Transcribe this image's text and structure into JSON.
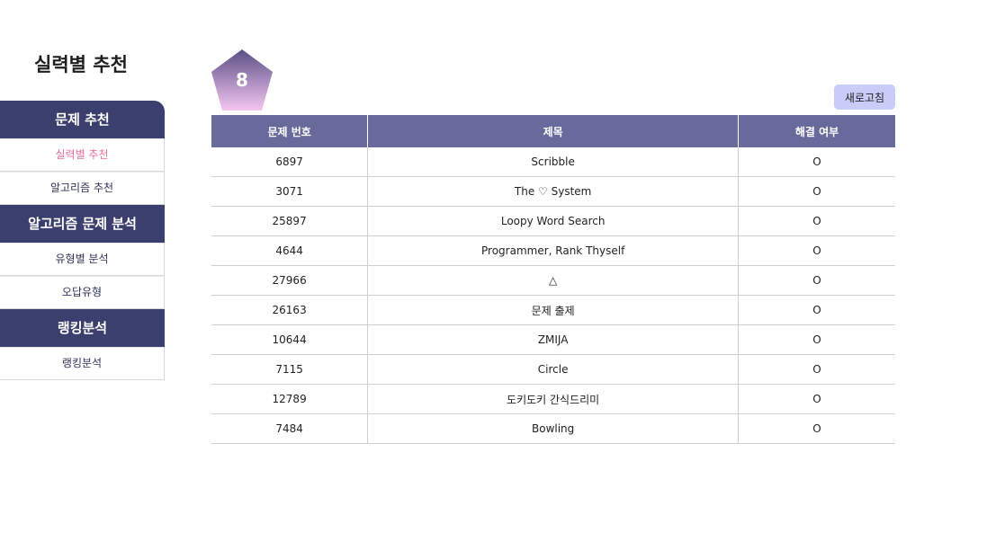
{
  "page": {
    "title": "실력별 추천"
  },
  "sidebar": {
    "sections": [
      {
        "header": "문제 추천",
        "items": [
          {
            "label": "실력별 추천",
            "active": true
          },
          {
            "label": "알고리즘 추천",
            "active": false
          }
        ]
      },
      {
        "header": "알고리즘 문제 분석",
        "items": [
          {
            "label": "유형별 분석",
            "active": false
          },
          {
            "label": "오답유형",
            "active": false
          }
        ]
      },
      {
        "header": "랭킹분석",
        "items": [
          {
            "label": "랭킹분석",
            "active": false
          }
        ]
      }
    ]
  },
  "tier": {
    "value": "8",
    "icon": "pentagon-tier-badge-icon",
    "gradient_top": "#5b4f86",
    "gradient_bottom": "#f4c6f0"
  },
  "toolbar": {
    "refresh_label": "새로고침"
  },
  "table": {
    "headers": [
      "문제 번호",
      "제목",
      "해결 여부"
    ],
    "rows": [
      {
        "number": "6897",
        "title": "Scribble",
        "solved": "O"
      },
      {
        "number": "3071",
        "title": "The ♡ System",
        "solved": "O"
      },
      {
        "number": "25897",
        "title": "Loopy Word Search",
        "solved": "O"
      },
      {
        "number": "4644",
        "title": "Programmer, Rank Thyself",
        "solved": "O"
      },
      {
        "number": "27966",
        "title": "△",
        "solved": "O"
      },
      {
        "number": "26163",
        "title": "문제 출제",
        "solved": "O"
      },
      {
        "number": "10644",
        "title": "ZMIJA",
        "solved": "O"
      },
      {
        "number": "7115",
        "title": "Circle",
        "solved": "O"
      },
      {
        "number": "12789",
        "title": "도키도키 간식드리미",
        "solved": "O"
      },
      {
        "number": "7484",
        "title": "Bowling",
        "solved": "O"
      }
    ]
  },
  "colors": {
    "sidebar_header": "#3b3f6e",
    "table_header": "#676a9b",
    "active_item": "#e8709a",
    "refresh_button": "#c9ccf7"
  }
}
